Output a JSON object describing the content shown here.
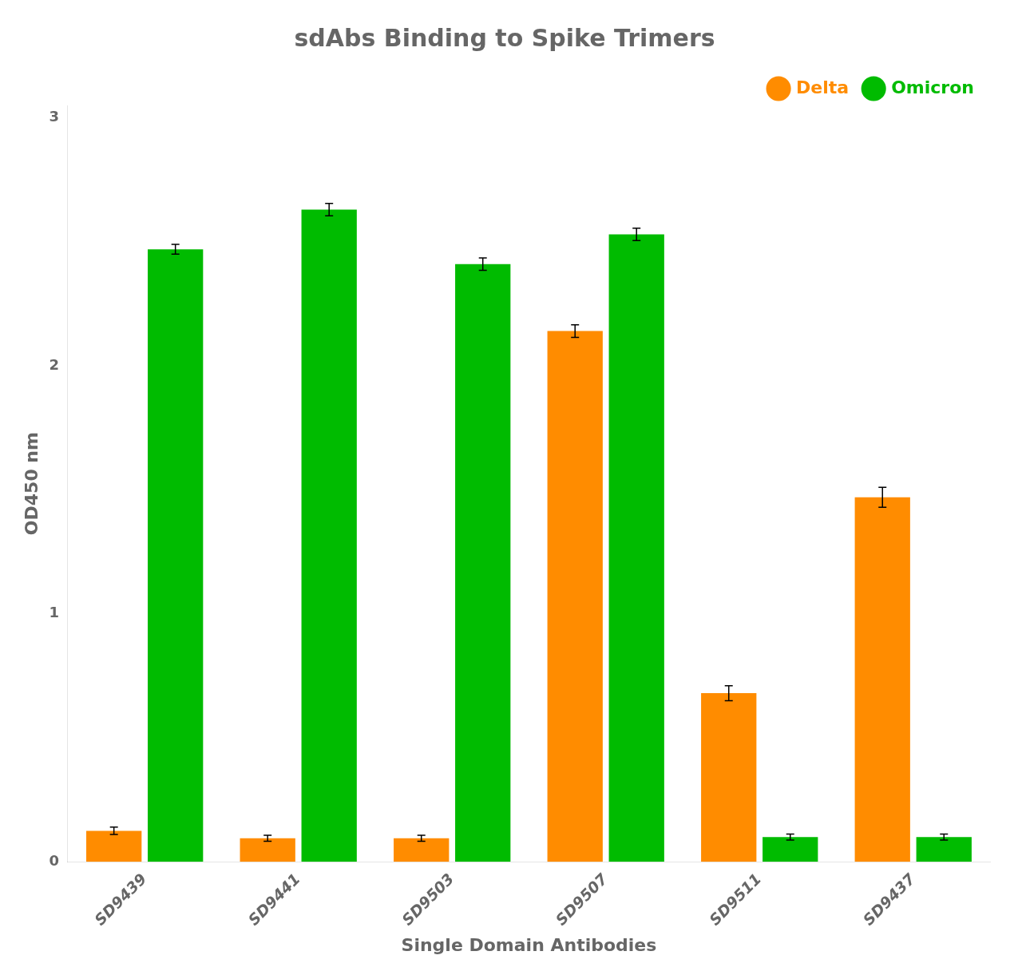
{
  "chart_data": {
    "type": "bar",
    "title": "sdAbs Binding to Spike Trimers",
    "xlabel": "Single Domain Antibodies",
    "ylabel": "OD450 nm",
    "categories": [
      "SD9439",
      "SD9441",
      "SD9503",
      "SD9507",
      "SD9511",
      "SD9437"
    ],
    "series": [
      {
        "name": "Delta",
        "color": "#FF8C00",
        "values": [
          0.125,
          0.095,
          0.095,
          2.14,
          0.68,
          1.47
        ],
        "errors": [
          0.015,
          0.012,
          0.012,
          0.025,
          0.03,
          0.04
        ]
      },
      {
        "name": "Omicron",
        "color": "#00BB00",
        "values": [
          2.47,
          2.63,
          2.41,
          2.53,
          0.1,
          0.1
        ],
        "errors": [
          0.02,
          0.025,
          0.025,
          0.025,
          0.012,
          0.012
        ]
      }
    ],
    "ylim": [
      0,
      3.05
    ],
    "yticks": [
      0,
      1,
      2,
      3
    ],
    "grid": false,
    "legend": "upper right"
  }
}
